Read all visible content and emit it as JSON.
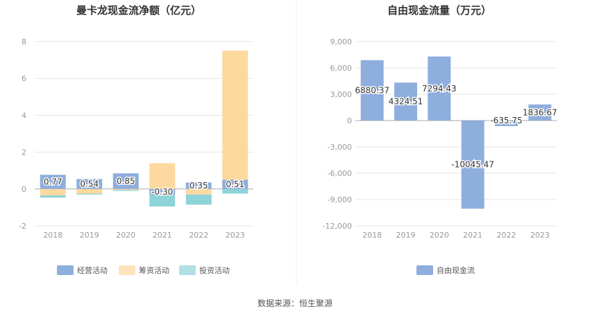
{
  "source": "数据来源：恒生聚源",
  "chart_data": [
    {
      "type": "bar",
      "stacked": true,
      "title": "曼卡龙现金流净额（亿元）",
      "categories": [
        "2018",
        "2019",
        "2020",
        "2021",
        "2022",
        "2023"
      ],
      "ylim": [
        -2,
        8
      ],
      "yticks": [
        "8",
        "6",
        "4",
        "2",
        "0",
        "-2"
      ],
      "grid": true,
      "legend_position": "bottom",
      "series": [
        {
          "name": "经营活动",
          "color": "#8eaedd",
          "values": [
            0.77,
            0.54,
            0.85,
            -0.3,
            0.35,
            0.51
          ],
          "labels": [
            "0.77",
            "0.54",
            "0.85",
            "-0.30",
            "0.35",
            "0.51"
          ]
        },
        {
          "name": "筹资活动",
          "color": "#fdd9a0",
          "values": [
            -0.35,
            -0.25,
            -0.05,
            1.4,
            -0.3,
            7.0
          ]
        },
        {
          "name": "投资活动",
          "color": "#8ed3d8",
          "values": [
            -0.12,
            -0.05,
            -0.05,
            -0.65,
            -0.55,
            -0.25
          ]
        }
      ]
    },
    {
      "type": "bar",
      "title": "自由现金流量（万元）",
      "categories": [
        "2018",
        "2019",
        "2020",
        "2021",
        "2022",
        "2023"
      ],
      "ylim": [
        -12000,
        9000
      ],
      "yticks": [
        "9,000",
        "6,000",
        "3,000",
        "0",
        "-3,000",
        "-6,000",
        "-9,000",
        "-12,000"
      ],
      "grid": true,
      "legend_position": "bottom",
      "series": [
        {
          "name": "自由现金流",
          "color": "#8eaedd",
          "values": [
            6880.37,
            4324.51,
            7294.43,
            -10045.47,
            -635.75,
            1836.67
          ],
          "labels": [
            "6880.37",
            "4324.51",
            "7294.43",
            "-10045.47",
            "-635.75",
            "1836.67"
          ]
        }
      ]
    }
  ]
}
